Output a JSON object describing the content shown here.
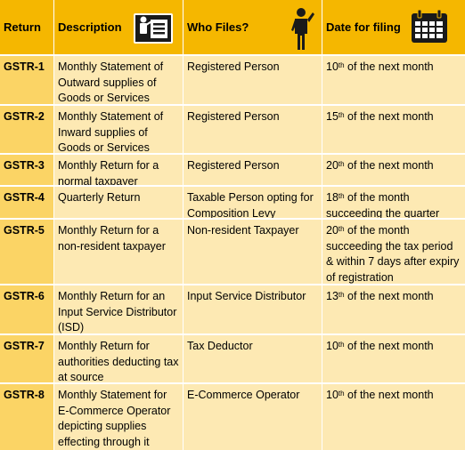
{
  "header": {
    "return": "Return",
    "description": "Description",
    "who_files": "Who Files?",
    "date_for_filing": "Date for filing"
  },
  "icons": {
    "description": "presentation-board-icon",
    "who_files": "person-standing-icon",
    "date_for_filing": "calendar-icon"
  },
  "colors": {
    "header": "#f5b700",
    "return_column": "#fbd465",
    "body": "#fde9b3"
  },
  "rows": [
    {
      "ret": "GSTR-1",
      "desc": "Monthly Statement of Outward supplies of Goods or Services",
      "who": "Registered  Person",
      "day": "10",
      "sfx": "th",
      "date": " of the next month"
    },
    {
      "ret": "GSTR-2",
      "desc": "Monthly Statement of Inward supplies of Goods or Services",
      "who": "Registered Person",
      "day": "15",
      "sfx": "th",
      "date": " of the next month"
    },
    {
      "ret": "GSTR-3",
      "desc": "Monthly Return for a normal taxpayer",
      "who": "Registered Person",
      "day": "20",
      "sfx": "th",
      "date": " of the next month"
    },
    {
      "ret": "GSTR-4",
      "desc": "Quarterly Return",
      "who": "Taxable Person opting for Composition Levy",
      "day": "18",
      "sfx": "th",
      "date": " of the month succeeding the quarter"
    },
    {
      "ret": "GSTR-5",
      "desc": "Monthly Return for a non-resident taxpayer",
      "who": "Non-resident Taxpayer",
      "day": "20",
      "sfx": "th",
      "date": " of the month succeeding the tax period & within 7 days after expiry of registration"
    },
    {
      "ret": "GSTR-6",
      "desc": "Monthly Return for an Input Service Distributor (ISD)",
      "who": "Input Service Distributor",
      "day": "13",
      "sfx": "th",
      "date": " of the next month"
    },
    {
      "ret": "GSTR-7",
      "desc": "Monthly Return for authorities deducting tax at source",
      "who": "Tax Deductor",
      "day": "10",
      "sfx": "th",
      "date": " of the next month"
    },
    {
      "ret": "GSTR-8",
      "desc": "Monthly Statement  for E-Commerce Operator depicting supplies effecting through it",
      "who": "E-Commerce Operator",
      "day": "10",
      "sfx": "th",
      "date": " of the next month"
    }
  ]
}
